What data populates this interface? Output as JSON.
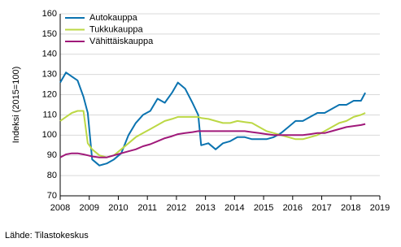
{
  "chart_data": {
    "type": "line",
    "y_label": "Indeksi (2015=100)",
    "source": "Lähde: Tilastokeskus",
    "x": [
      2008,
      2008.2,
      2008.4,
      2008.6,
      2008.8,
      2008.95,
      2009.1,
      2009.35,
      2009.6,
      2009.85,
      2010.1,
      2010.35,
      2010.6,
      2010.85,
      2011.1,
      2011.35,
      2011.6,
      2011.85,
      2012.05,
      2012.3,
      2012.55,
      2012.75,
      2012.85,
      2013.1,
      2013.35,
      2013.6,
      2013.85,
      2014.1,
      2014.35,
      2014.6,
      2014.85,
      2015.1,
      2015.35,
      2015.6,
      2015.85,
      2016.1,
      2016.35,
      2016.6,
      2016.85,
      2017.1,
      2017.35,
      2017.6,
      2017.85,
      2018.1,
      2018.35,
      2018.5
    ],
    "series": [
      {
        "name": "Autokauppa",
        "color": "#0b73b0",
        "values": [
          126,
          131,
          129,
          127,
          119,
          111,
          88,
          85,
          86,
          88,
          91,
          100,
          106,
          110,
          112,
          118,
          116,
          121,
          126,
          123,
          116,
          110,
          95,
          96,
          93,
          96,
          97,
          99,
          99,
          98,
          98,
          98,
          99,
          101,
          104,
          107,
          107,
          109,
          111,
          111,
          113,
          115,
          115,
          117,
          117,
          121
        ]
      },
      {
        "name": "Tukkukauppa",
        "color": "#bcd845",
        "values": [
          107,
          109,
          111,
          112,
          112,
          96,
          93,
          90,
          89,
          90,
          93,
          96,
          99,
          101,
          103,
          105,
          107,
          108,
          109,
          109,
          109,
          109,
          108.5,
          108,
          107,
          106,
          106,
          107,
          106.5,
          106,
          104,
          102,
          101,
          100,
          99,
          98,
          98,
          99,
          100,
          102,
          104,
          106,
          107,
          109,
          110,
          111
        ]
      },
      {
        "name": "Vähittäiskauppa",
        "color": "#a0197a",
        "values": [
          89,
          90.5,
          91,
          91,
          90.5,
          90,
          89.5,
          89,
          89,
          90,
          91,
          92,
          93,
          94.5,
          95.5,
          97,
          98.5,
          99.5,
          100.5,
          101,
          101.5,
          102,
          102,
          102,
          102,
          102,
          102,
          102,
          102,
          101.5,
          101,
          100.5,
          100,
          100,
          100,
          100,
          100,
          100.5,
          101,
          101,
          102,
          103,
          104,
          104.5,
          105,
          105.5
        ]
      }
    ],
    "xlim": [
      2008,
      2019
    ],
    "xticks": [
      2008,
      2009,
      2010,
      2011,
      2012,
      2013,
      2014,
      2015,
      2016,
      2017,
      2018,
      2019
    ],
    "ylim": [
      70,
      160
    ],
    "yticks": [
      70,
      80,
      90,
      100,
      110,
      120,
      130,
      140,
      150,
      160
    ],
    "grid": true,
    "legend": "upper-left"
  }
}
